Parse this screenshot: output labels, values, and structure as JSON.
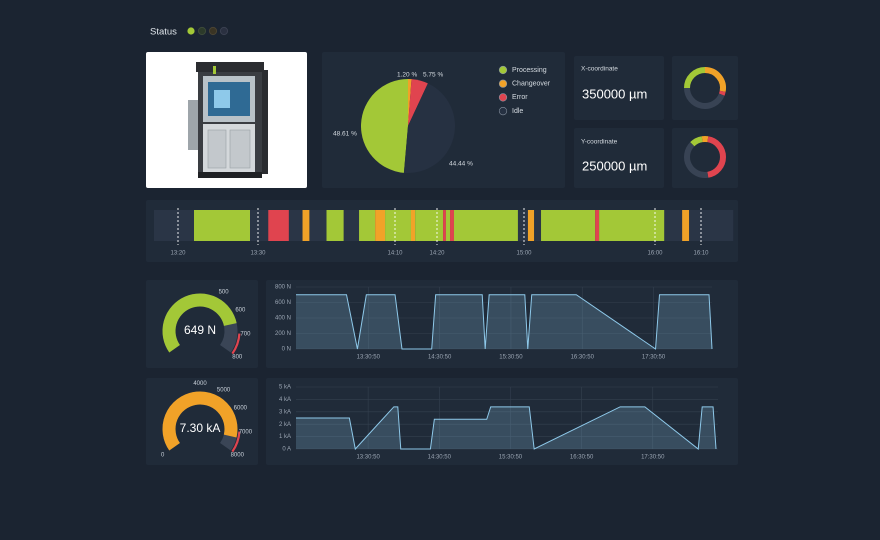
{
  "status": {
    "label": "Status"
  },
  "panels": {
    "x_coordinate": {
      "label": "X-coordinate",
      "value": "350000 µm"
    },
    "y_coordinate": {
      "label": "Y-coordinate",
      "value": "250000 µm"
    }
  },
  "chart_data": [
    {
      "type": "pie",
      "categories": [
        "Processing",
        "Changeover",
        "Error",
        "Idle"
      ],
      "values": [
        48.61,
        1.2,
        5.75,
        44.44
      ],
      "value_labels": [
        "48.61 %",
        "1.20 %",
        "5.75 %",
        "44.44 %"
      ],
      "colors": [
        "#a3c837",
        "#f1a228",
        "#e0444f",
        "#263142"
      ]
    },
    {
      "type": "pie",
      "values": [
        25,
        28,
        3,
        44
      ],
      "colors": [
        "#a3c837",
        "#f1a228",
        "#e0444f",
        "#384354"
      ]
    },
    {
      "type": "pie",
      "values": [
        10,
        5,
        45,
        40
      ],
      "colors": [
        "#a3c837",
        "#f1a228",
        "#e0444f",
        "#384354"
      ]
    },
    {
      "type": "timeline",
      "xlim": [
        797,
        977
      ],
      "xticks": [
        {
          "value": 800,
          "label": "13:20"
        },
        {
          "value": 810,
          "label": "13:30"
        },
        {
          "value": 850,
          "label": "14:10"
        },
        {
          "value": 860,
          "label": "14:20"
        },
        {
          "value": 900,
          "label": "15:00"
        },
        {
          "value": 960,
          "label": "16:00"
        },
        {
          "value": 970,
          "label": "16:10"
        }
      ],
      "segments": [
        {
          "start": 802,
          "end": 809,
          "color": "#a3c837"
        },
        {
          "start": 813,
          "end": 819,
          "color": "#e0444f"
        },
        {
          "start": 823,
          "end": 825,
          "color": "#f1a228"
        },
        {
          "start": 830,
          "end": 835,
          "color": "#a3c837"
        },
        {
          "start": 839.5,
          "end": 844.2,
          "color": "#a3c837"
        },
        {
          "start": 844.2,
          "end": 847.1,
          "color": "#f1a228"
        },
        {
          "start": 847.1,
          "end": 853.8,
          "color": "#a3c837"
        },
        {
          "start": 853.8,
          "end": 854.8,
          "color": "#f1a228"
        },
        {
          "start": 854.8,
          "end": 862.8,
          "color": "#a3c837"
        },
        {
          "start": 862.8,
          "end": 864.1,
          "color": "#e0444f"
        },
        {
          "start": 864.1,
          "end": 866,
          "color": "#a3c837"
        },
        {
          "start": 866,
          "end": 867.8,
          "color": "#e0444f"
        },
        {
          "start": 867.8,
          "end": 897.2,
          "color": "#a3c837"
        },
        {
          "start": 901.8,
          "end": 904.6,
          "color": "#f1a228"
        },
        {
          "start": 907.8,
          "end": 932.6,
          "color": "#a3c837"
        },
        {
          "start": 932.6,
          "end": 934.4,
          "color": "#e0444f"
        },
        {
          "start": 934.4,
          "end": 962,
          "color": "#a3c837"
        },
        {
          "start": 965.9,
          "end": 967.4,
          "color": "#f1a228"
        }
      ]
    },
    {
      "type": "gauge",
      "value": 649,
      "value_label": "649 N",
      "ylim": [
        0,
        800
      ],
      "yticks": [
        500,
        600,
        700,
        800
      ],
      "color": "#a3c837",
      "zone": {
        "from": 700,
        "to": 800,
        "color": "#e0444f"
      }
    },
    {
      "type": "line",
      "x": [
        45000,
        47550,
        48100,
        48550,
        50000,
        50350,
        51850,
        52050,
        54400,
        54550,
        54750,
        56550,
        56700,
        56900,
        59150,
        63150,
        63350,
        65850,
        66000
      ],
      "series": [
        {
          "color": "#8ec9ea",
          "values": [
            700,
            700,
            0,
            700,
            700,
            0,
            0,
            700,
            700,
            0,
            700,
            700,
            0,
            700,
            700,
            0,
            700,
            700,
            0
          ]
        }
      ],
      "xlim": [
        45000,
        66000
      ],
      "xticks": [
        {
          "value": 48650,
          "label": "13:30:50"
        },
        {
          "value": 52250,
          "label": "14:30:50"
        },
        {
          "value": 55850,
          "label": "15:30:50"
        },
        {
          "value": 59450,
          "label": "16:30:50"
        },
        {
          "value": 63050,
          "label": "17:30:50"
        }
      ],
      "ylim": [
        0,
        800
      ],
      "yticks": [
        {
          "value": 0,
          "label": "0 N"
        },
        {
          "value": 200,
          "label": "200 N"
        },
        {
          "value": 400,
          "label": "400 N"
        },
        {
          "value": 600,
          "label": "600 N"
        },
        {
          "value": 800,
          "label": "800 N"
        }
      ],
      "grid": true
    },
    {
      "type": "gauge",
      "value": 7300,
      "value_label": "7.30 kA",
      "ylim": [
        0,
        8000
      ],
      "yticks": [
        0,
        4000,
        5000,
        6000,
        7000,
        8000
      ],
      "color": "#f1a228",
      "zone": {
        "from": 7000,
        "to": 8000,
        "color": "#e0444f"
      }
    },
    {
      "type": "line",
      "x": [
        45000,
        47700,
        48000,
        49950,
        50150,
        50300,
        51800,
        52000,
        54650,
        54850,
        56800,
        57050,
        61400,
        62650,
        65350,
        65550,
        66100,
        66250
      ],
      "series": [
        {
          "color": "#8ec9ea",
          "values": [
            2500,
            2500,
            0,
            3400,
            3400,
            0,
            0,
            2400,
            2400,
            3400,
            3400,
            0,
            3400,
            3400,
            0,
            3400,
            3400,
            0
          ]
        }
      ],
      "xlim": [
        45000,
        66350
      ],
      "xticks": [
        {
          "value": 48650,
          "label": "13:30:50"
        },
        {
          "value": 52250,
          "label": "14:30:50"
        },
        {
          "value": 55850,
          "label": "15:30:50"
        },
        {
          "value": 59450,
          "label": "16:30:50"
        },
        {
          "value": 63050,
          "label": "17:30:50"
        }
      ],
      "ylim": [
        0,
        5000
      ],
      "yticks": [
        {
          "value": 0,
          "label": "0 A"
        },
        {
          "value": 1000,
          "label": "1 kA"
        },
        {
          "value": 2000,
          "label": "2 kA"
        },
        {
          "value": 3000,
          "label": "3 kA"
        },
        {
          "value": 4000,
          "label": "4 kA"
        },
        {
          "value": 5000,
          "label": "5 kA"
        }
      ],
      "grid": true
    }
  ]
}
